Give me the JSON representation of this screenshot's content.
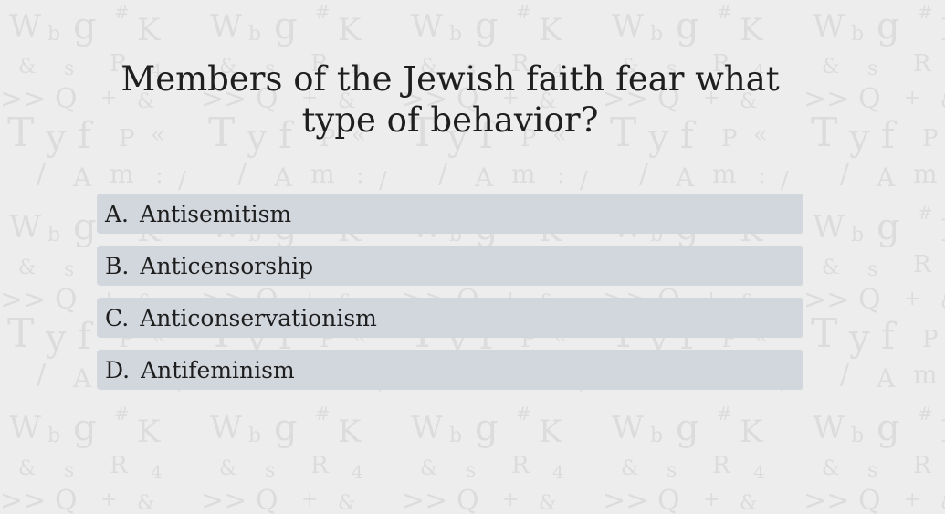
{
  "quiz": {
    "question": "Members of the Jewish faith fear what type of behavior?",
    "answers": [
      {
        "letter": "A.",
        "text": "Antisemitism"
      },
      {
        "letter": "B.",
        "text": "Anticensorship"
      },
      {
        "letter": "C.",
        "text": "Anticonservationism"
      },
      {
        "letter": "D.",
        "text": "Antifeminism"
      }
    ]
  },
  "colors": {
    "background": "#ededed",
    "answer_background": "#d2d6dd",
    "text": "#1e1e1e"
  }
}
